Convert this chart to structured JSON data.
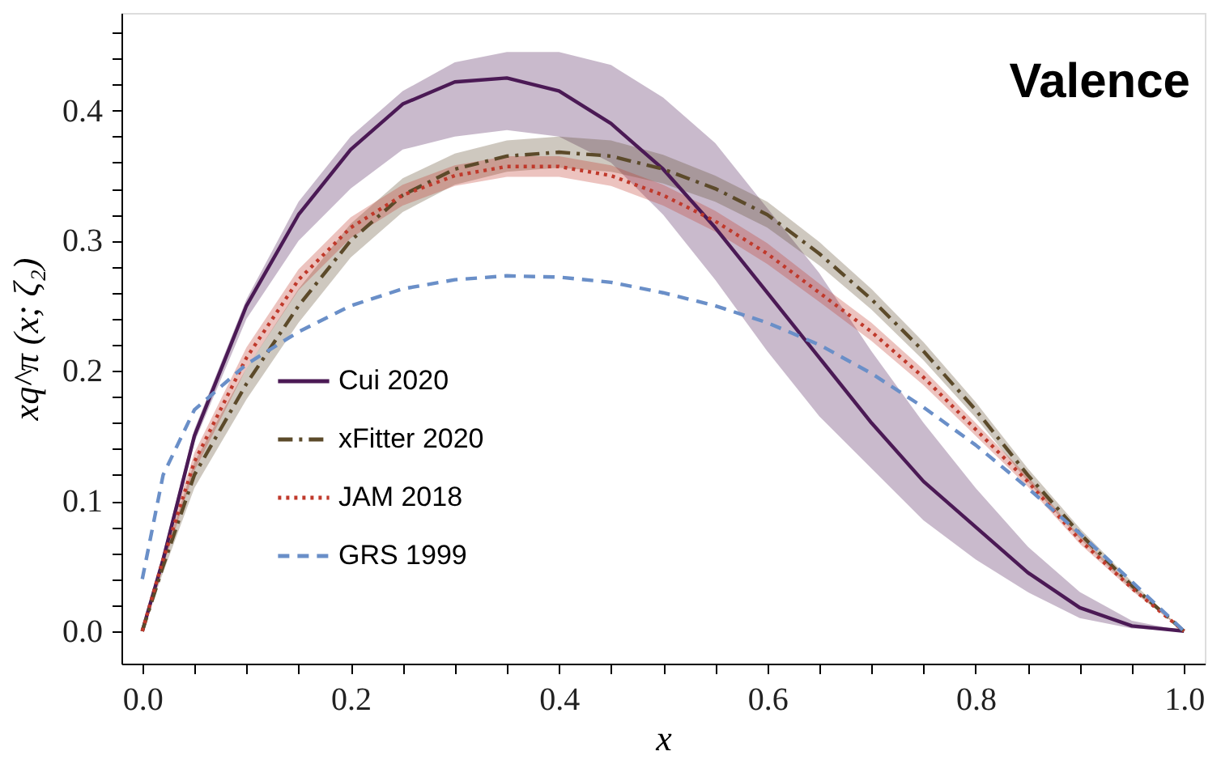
{
  "chart_data": {
    "type": "line",
    "xlabel": "x",
    "ylabel": "xq^π (x; ζ₂)",
    "annotations": [
      "Valence"
    ],
    "xlim": [
      -0.02,
      1.02
    ],
    "ylim": [
      -0.025,
      0.475
    ],
    "xticks": [
      {
        "value": 0,
        "label": "0.0"
      },
      {
        "value": 0.05,
        "label": null
      },
      {
        "value": 0.1,
        "label": null
      },
      {
        "value": 0.15,
        "label": null
      },
      0.2,
      {
        "value": 0.25,
        "label": null
      },
      {
        "value": 0.3,
        "label": null
      },
      {
        "value": 0.35,
        "label": null
      },
      0.4,
      {
        "value": 0.45,
        "label": null
      },
      {
        "value": 0.5,
        "label": null
      },
      {
        "value": 0.55,
        "label": null
      },
      0.6,
      {
        "value": 0.65,
        "label": null
      },
      {
        "value": 0.7,
        "label": null
      },
      {
        "value": 0.75,
        "label": null
      },
      0.8,
      {
        "value": 0.85,
        "label": null
      },
      {
        "value": 0.9,
        "label": null
      },
      {
        "value": 0.95,
        "label": null
      },
      {
        "value": 1,
        "label": "1.0"
      }
    ],
    "yticks": [
      {
        "value": 0,
        "label": "0.0"
      },
      {
        "value": 0.02,
        "label": null
      },
      {
        "value": 0.04,
        "label": null
      },
      {
        "value": 0.06,
        "label": null
      },
      {
        "value": 0.08,
        "label": null
      },
      0.1,
      {
        "value": 0.12,
        "label": null
      },
      {
        "value": 0.14,
        "label": null
      },
      {
        "value": 0.16,
        "label": null
      },
      {
        "value": 0.18,
        "label": null
      },
      0.2,
      {
        "value": 0.22,
        "label": null
      },
      {
        "value": 0.24,
        "label": null
      },
      {
        "value": 0.26,
        "label": null
      },
      {
        "value": 0.28,
        "label": null
      },
      0.3,
      {
        "value": 0.32,
        "label": null
      },
      {
        "value": 0.34,
        "label": null
      },
      {
        "value": 0.36,
        "label": null
      },
      {
        "value": 0.38,
        "label": null
      },
      0.4,
      {
        "value": 0.42,
        "label": null
      },
      {
        "value": 0.44,
        "label": null
      },
      {
        "value": 0.46,
        "label": null
      }
    ],
    "x": [
      0,
      0.02,
      0.05,
      0.1,
      0.15,
      0.2,
      0.25,
      0.3,
      0.35,
      0.4,
      0.45,
      0.5,
      0.55,
      0.6,
      0.65,
      0.7,
      0.75,
      0.8,
      0.85,
      0.9,
      0.95,
      1
    ],
    "grid": false,
    "legend": "bottom left",
    "series": [
      {
        "name": "Cui 2020",
        "color": "#4b1a55",
        "line_style": "solid",
        "values": [
          0,
          0.055,
          0.15,
          0.25,
          0.32,
          0.37,
          0.405,
          0.422,
          0.425,
          0.415,
          0.39,
          0.355,
          0.31,
          0.26,
          0.21,
          0.16,
          0.115,
          0.08,
          0.045,
          0.018,
          0.004,
          0
        ],
        "lower": [
          0,
          0.05,
          0.145,
          0.24,
          0.3,
          0.34,
          0.37,
          0.38,
          0.385,
          0.38,
          0.36,
          0.32,
          0.27,
          0.215,
          0.165,
          0.125,
          0.085,
          0.055,
          0.03,
          0.01,
          0.002,
          0
        ],
        "upper": [
          0,
          0.06,
          0.155,
          0.255,
          0.33,
          0.38,
          0.415,
          0.437,
          0.445,
          0.445,
          0.435,
          0.41,
          0.375,
          0.325,
          0.275,
          0.215,
          0.16,
          0.11,
          0.065,
          0.03,
          0.008,
          0
        ]
      },
      {
        "name": "xFitter 2020",
        "color": "#5c4a2a",
        "line_style": "dashdot",
        "values": [
          0,
          0.05,
          0.12,
          0.19,
          0.25,
          0.3,
          0.335,
          0.355,
          0.365,
          0.368,
          0.365,
          0.355,
          0.34,
          0.32,
          0.29,
          0.255,
          0.215,
          0.17,
          0.12,
          0.075,
          0.035,
          0
        ],
        "lower": [
          0,
          0.045,
          0.11,
          0.178,
          0.237,
          0.287,
          0.322,
          0.343,
          0.353,
          0.356,
          0.353,
          0.344,
          0.33,
          0.31,
          0.281,
          0.247,
          0.208,
          0.164,
          0.115,
          0.071,
          0.032,
          0
        ],
        "upper": [
          0,
          0.055,
          0.13,
          0.202,
          0.263,
          0.313,
          0.348,
          0.367,
          0.377,
          0.38,
          0.377,
          0.366,
          0.35,
          0.33,
          0.299,
          0.263,
          0.222,
          0.176,
          0.125,
          0.079,
          0.038,
          0
        ]
      },
      {
        "name": "JAM 2018",
        "color": "#c0392b",
        "line_style": "dotted",
        "values": [
          0,
          0.055,
          0.13,
          0.21,
          0.27,
          0.31,
          0.335,
          0.35,
          0.357,
          0.357,
          0.35,
          0.335,
          0.315,
          0.29,
          0.26,
          0.23,
          0.195,
          0.155,
          0.115,
          0.07,
          0.033,
          0
        ],
        "lower": [
          0,
          0.05,
          0.123,
          0.202,
          0.262,
          0.302,
          0.327,
          0.342,
          0.349,
          0.349,
          0.342,
          0.327,
          0.307,
          0.282,
          0.253,
          0.223,
          0.189,
          0.15,
          0.111,
          0.067,
          0.031,
          0
        ],
        "upper": [
          0,
          0.06,
          0.137,
          0.218,
          0.278,
          0.318,
          0.343,
          0.358,
          0.365,
          0.365,
          0.358,
          0.343,
          0.323,
          0.298,
          0.267,
          0.237,
          0.201,
          0.16,
          0.119,
          0.073,
          0.035,
          0
        ]
      },
      {
        "name": "GRS 1999",
        "color": "#6a8fc8",
        "line_style": "dashed",
        "values": [
          0.04,
          0.12,
          0.17,
          0.205,
          0.23,
          0.25,
          0.263,
          0.27,
          0.273,
          0.272,
          0.268,
          0.26,
          0.25,
          0.237,
          0.22,
          0.198,
          0.172,
          0.143,
          0.11,
          0.075,
          0.038,
          0
        ]
      }
    ]
  }
}
